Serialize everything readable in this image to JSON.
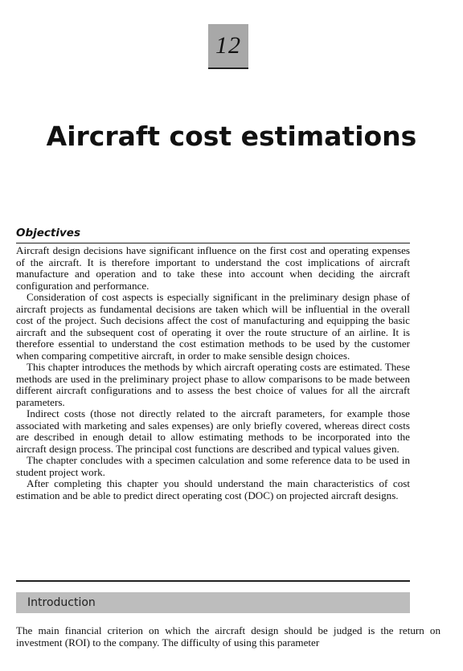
{
  "chapter": {
    "number": "12",
    "title": "Aircraft cost estimations"
  },
  "objectives": {
    "heading": "Objectives",
    "paragraphs": [
      "Aircraft design decisions have significant influence on the first cost and operating expenses of the aircraft. It is therefore important to understand the cost implications of aircraft manufacture and operation and to take these into account when deciding the aircraft configuration and performance.",
      "Consideration of cost aspects is especially significant in the preliminary design phase of aircraft projects as fundamental decisions are taken which will be influential in the overall cost of the project. Such decisions affect the cost of manufacturing and equipping the basic aircraft and the subsequent cost of operating it over the route structure of an airline. It is therefore essential to understand the cost estimation methods to be used by the customer when comparing competitive aircraft, in order to make sensible design choices.",
      "This chapter introduces the methods by which aircraft operating costs are estimated. These methods are used in the preliminary project phase to allow comparisons to be made between different aircraft configurations and to assess the best choice of values for all the aircraft parameters.",
      "Indirect costs (those not directly related to the aircraft parameters, for example those associated with marketing and sales expenses) are only briefly covered, whereas direct costs are described in enough detail to allow estimating methods to be incorporated into the aircraft design process. The principal cost functions are described and typical values given.",
      "The chapter concludes with a specimen calculation and some reference data to be used in student project work.",
      "After completing this chapter you should understand the main characteristics of cost estimation and be able to predict direct operating cost (DOC) on projected aircraft designs."
    ]
  },
  "introduction": {
    "heading": "Introduction",
    "paragraphs": [
      "The main financial criterion on which the aircraft design should be judged is the return on investment (ROI) to the company. The difficulty of using this parameter"
    ]
  }
}
